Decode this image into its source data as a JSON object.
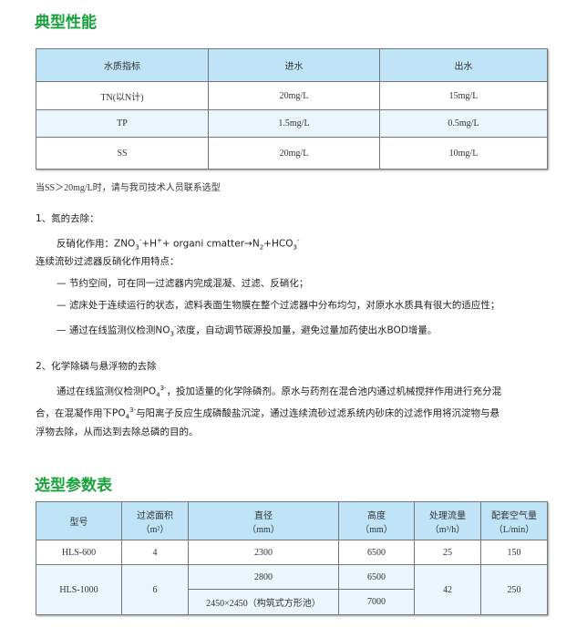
{
  "section1": {
    "title": "典型性能",
    "headers": [
      "水质指标",
      "进水",
      "出水"
    ],
    "rows": [
      [
        "TN(以N计)",
        "20mg/L",
        "15mg/L"
      ],
      [
        "TP",
        "1.5mg/L",
        "0.5mg/L"
      ],
      [
        "SS",
        "20mg/L",
        "10mg/L"
      ]
    ],
    "note": "当SS＞20mg/L时，请与我司技术人员联系选型"
  },
  "text": {
    "n_title": "1、氮的去除：",
    "denit_label": "反硝化作用：ZNO",
    "denit_sub1": "3",
    "denit_sup1": "-",
    "denit_b": "+H",
    "denit_sup2": "+",
    "denit_c": "+ organi cmatter→N",
    "denit_sub2": "2",
    "denit_d": "+HCO",
    "denit_sub3": "3",
    "denit_sup3": "-",
    "features_title": "连续流砂过滤器反硝化作用特点：",
    "f1": "— 节约空间，可在同一过滤器内完成混凝、过滤、反硝化；",
    "f2": "— 滤床处于连续运行的状态，滤料表面生物膜在整个过滤器中分布均匀，对原水水质具有很大的适应性；",
    "f3a": "— 通过在线监测仪检测NO",
    "f3sub": "3",
    "f3sup": "-",
    "f3b": "浓度，自动调节碳源投加量，避免过量加药使出水BOD增量。",
    "p_title": "2、化学除磷与悬浮物的去除",
    "p1a": "通过在线监测仪检测PO",
    "p1sub": "4",
    "p1sup": "3-",
    "p1b": "，投加适量的化学除磷剂。原水与药剂在混合池内通过机械搅拌作用进行充分混",
    "p2a": "合，在混凝作用下PO",
    "p2sub": "4",
    "p2sup": "3-",
    "p2b": "与阳离子反应生成磷酸盐沉淀，通过连续流砂过滤系统内砂床的过滤作用将沉淀物与悬",
    "p3": "浮物去除，从而达到去除总磷的目的。"
  },
  "section2": {
    "title": "选型参数表",
    "headers": [
      [
        "型号",
        ""
      ],
      [
        "过滤面积",
        "（m²）"
      ],
      [
        "直径",
        "（mm）"
      ],
      [
        "高度",
        "（mm）"
      ],
      [
        "处理流量",
        "（m³/h）"
      ],
      [
        "配套空气量",
        "（L/min）"
      ]
    ],
    "row1": [
      "HLS-600",
      "4",
      "2300",
      "6500",
      "25",
      "150"
    ],
    "row2": {
      "model": "HLS-1000",
      "area": "6",
      "d1": "2800",
      "h1": "6500",
      "d2": "2450×2450（构筑式方形池）",
      "h2": "7000",
      "flow": "42",
      "air": "250"
    }
  },
  "colors": {
    "heading": "#1aa33c",
    "table_header": "#bfe3f7",
    "row_alt": "#eaf5fc"
  }
}
